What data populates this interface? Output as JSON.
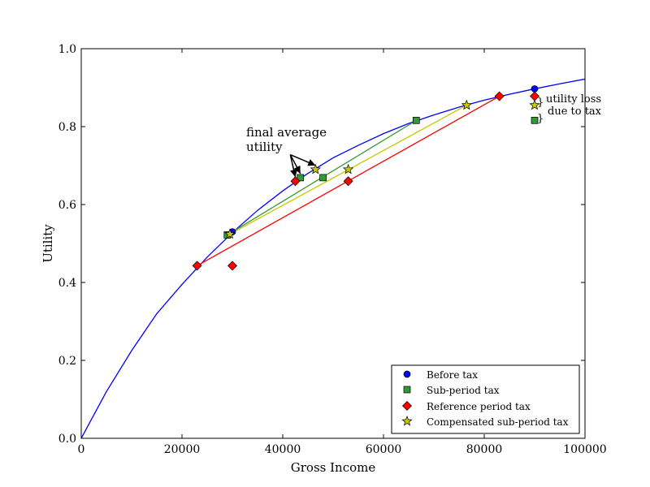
{
  "chart_data": {
    "type": "line",
    "xlabel": "Gross Income",
    "ylabel": "Utility",
    "xlim": [
      0,
      100000
    ],
    "ylim": [
      0.0,
      1.0
    ],
    "xticks": [
      0,
      20000,
      40000,
      60000,
      80000,
      100000
    ],
    "xtick_labels": [
      "0",
      "20000",
      "40000",
      "60000",
      "80000",
      "100000"
    ],
    "yticks": [
      0.0,
      0.2,
      0.4,
      0.6,
      0.8,
      1.0
    ],
    "ytick_labels": [
      "0.0",
      "0.2",
      "0.4",
      "0.6",
      "0.8",
      "1.0"
    ],
    "grid": false,
    "legend_position": "lower-right",
    "utility_curve": {
      "color": "#0000ff",
      "points": [
        [
          0,
          0.0
        ],
        [
          5000,
          0.12
        ],
        [
          10000,
          0.225
        ],
        [
          15000,
          0.32
        ],
        [
          20000,
          0.395
        ],
        [
          25000,
          0.465
        ],
        [
          30000,
          0.528
        ],
        [
          35000,
          0.585
        ],
        [
          40000,
          0.635
        ],
        [
          45000,
          0.68
        ],
        [
          50000,
          0.72
        ],
        [
          55000,
          0.752
        ],
        [
          60000,
          0.782
        ],
        [
          65000,
          0.808
        ],
        [
          70000,
          0.83
        ],
        [
          75000,
          0.85
        ],
        [
          80000,
          0.868
        ],
        [
          85000,
          0.883
        ],
        [
          90000,
          0.897
        ],
        [
          95000,
          0.91
        ],
        [
          100000,
          0.922
        ]
      ]
    },
    "segments": [
      {
        "color": "#339933",
        "from": [
          29000,
          0.522
        ],
        "to": [
          66500,
          0.816
        ]
      },
      {
        "color": "#c8c800",
        "from": [
          29500,
          0.524
        ],
        "to": [
          76500,
          0.855
        ]
      },
      {
        "color": "#ff0000",
        "from": [
          23000,
          0.443
        ],
        "to": [
          83000,
          0.878
        ]
      }
    ],
    "series": [
      {
        "name": "Before tax",
        "marker": "circle",
        "color": "#0000ff",
        "points": [
          [
            30000,
            0.53
          ],
          [
            90000,
            0.897
          ]
        ]
      },
      {
        "name": "Sub-period tax",
        "marker": "square",
        "color": "#339933",
        "points": [
          [
            29000,
            0.522
          ],
          [
            66500,
            0.816
          ],
          [
            43500,
            0.669
          ],
          [
            48000,
            0.669
          ],
          [
            90000,
            0.816
          ]
        ]
      },
      {
        "name": "Reference period tax",
        "marker": "diamond",
        "color": "#ff0000",
        "points": [
          [
            23000,
            0.443
          ],
          [
            83000,
            0.878
          ],
          [
            30000,
            0.443
          ],
          [
            42500,
            0.66
          ],
          [
            53000,
            0.66
          ],
          [
            90000,
            0.878
          ]
        ]
      },
      {
        "name": "Compensated sub-period tax",
        "marker": "star",
        "color": "#c8c800",
        "points": [
          [
            29500,
            0.524
          ],
          [
            76500,
            0.855
          ],
          [
            46500,
            0.69
          ],
          [
            53000,
            0.69
          ],
          [
            90000,
            0.855
          ]
        ]
      }
    ],
    "annotations": {
      "final_average": {
        "lines": [
          "final average",
          "utility"
        ],
        "arrow_from": [
          41500,
          0.728
        ],
        "arrow_targets": [
          [
            42500,
            0.66
          ],
          [
            43500,
            0.669
          ],
          [
            46500,
            0.69
          ]
        ]
      },
      "utility_loss": {
        "lines": [
          "utility loss",
          "due to tax"
        ]
      }
    }
  }
}
